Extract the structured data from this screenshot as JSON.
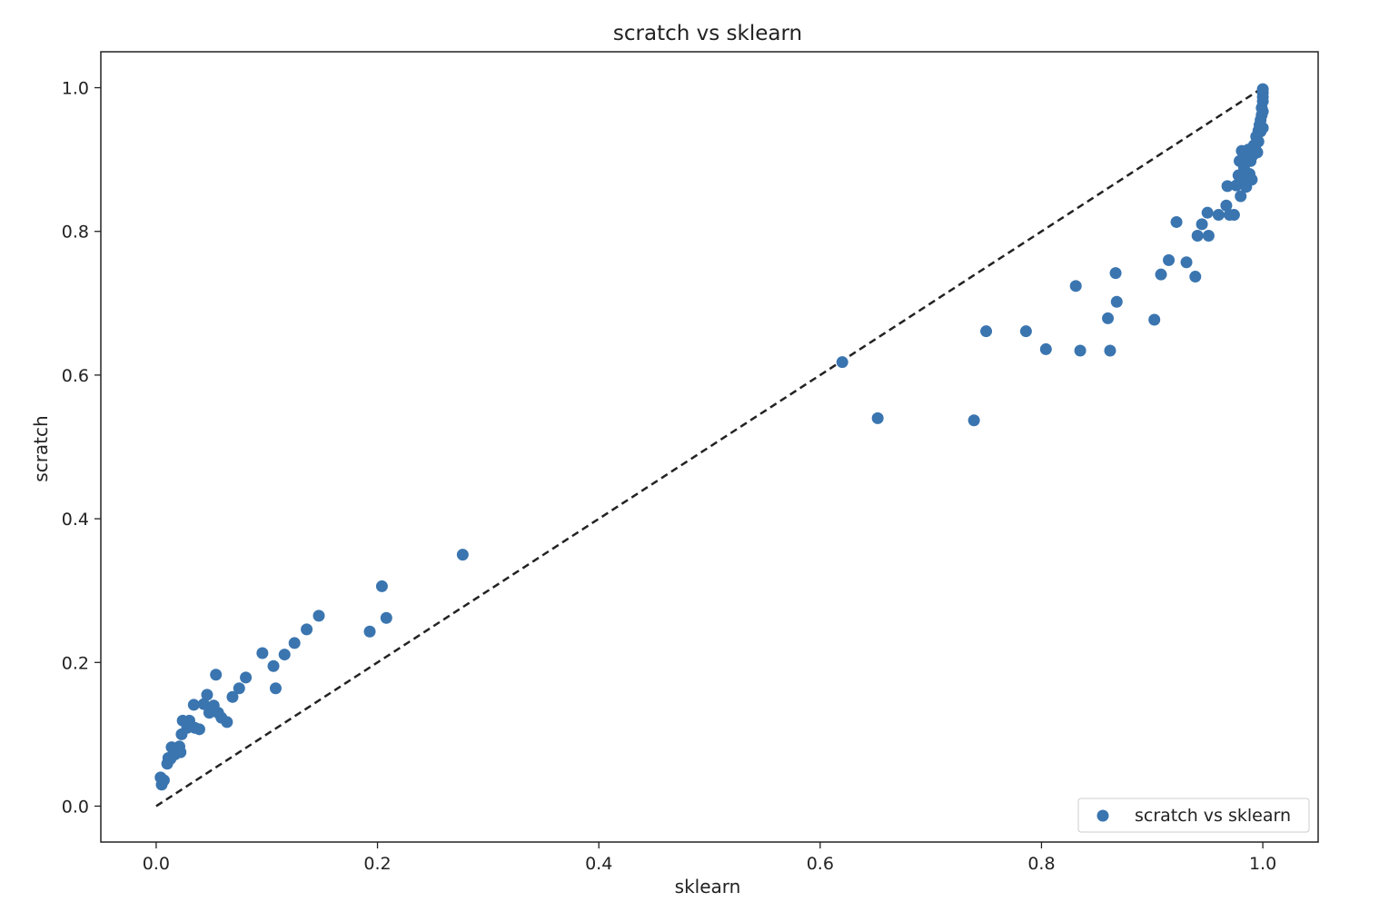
{
  "chart_data": {
    "type": "scatter",
    "title": "scratch vs sklearn",
    "xlabel": "sklearn",
    "ylabel": "scratch",
    "xlim": [
      -0.05,
      1.05
    ],
    "ylim": [
      -0.05,
      1.05
    ],
    "xticks": [
      {
        "value": 0.0,
        "label": "0.0"
      },
      {
        "value": 0.2,
        "label": "0.2"
      },
      {
        "value": 0.4,
        "label": "0.4"
      },
      {
        "value": 0.6,
        "label": "0.6"
      },
      {
        "value": 0.8,
        "label": "0.8"
      },
      {
        "value": 1.0,
        "label": "1.0"
      }
    ],
    "yticks": [
      {
        "value": 0.0,
        "label": "0.0"
      },
      {
        "value": 0.2,
        "label": "0.2"
      },
      {
        "value": 0.4,
        "label": "0.4"
      },
      {
        "value": 0.6,
        "label": "0.6"
      },
      {
        "value": 0.8,
        "label": "0.8"
      },
      {
        "value": 1.0,
        "label": "1.0"
      }
    ],
    "grid": false,
    "legend": {
      "position": "lower-right",
      "entries": [
        "scratch vs sklearn"
      ]
    },
    "reference_line": {
      "x": [
        0,
        1
      ],
      "y": [
        0,
        1
      ],
      "style": "dashed",
      "color": "#222222"
    },
    "series": [
      {
        "name": "scratch vs sklearn",
        "color": "#3a75b0",
        "points": [
          [
            0.004,
            0.04
          ],
          [
            0.005,
            0.03
          ],
          [
            0.007,
            0.036
          ],
          [
            0.01,
            0.059
          ],
          [
            0.011,
            0.067
          ],
          [
            0.013,
            0.066
          ],
          [
            0.014,
            0.082
          ],
          [
            0.017,
            0.072
          ],
          [
            0.018,
            0.077
          ],
          [
            0.021,
            0.083
          ],
          [
            0.022,
            0.075
          ],
          [
            0.023,
            0.1
          ],
          [
            0.024,
            0.119
          ],
          [
            0.028,
            0.109
          ],
          [
            0.03,
            0.119
          ],
          [
            0.034,
            0.141
          ],
          [
            0.035,
            0.109
          ],
          [
            0.039,
            0.107
          ],
          [
            0.043,
            0.142
          ],
          [
            0.046,
            0.155
          ],
          [
            0.048,
            0.13
          ],
          [
            0.052,
            0.14
          ],
          [
            0.054,
            0.183
          ],
          [
            0.056,
            0.13
          ],
          [
            0.059,
            0.123
          ],
          [
            0.064,
            0.117
          ],
          [
            0.069,
            0.152
          ],
          [
            0.075,
            0.164
          ],
          [
            0.081,
            0.179
          ],
          [
            0.096,
            0.213
          ],
          [
            0.106,
            0.195
          ],
          [
            0.108,
            0.164
          ],
          [
            0.116,
            0.211
          ],
          [
            0.125,
            0.227
          ],
          [
            0.136,
            0.246
          ],
          [
            0.147,
            0.265
          ],
          [
            0.193,
            0.243
          ],
          [
            0.204,
            0.306
          ],
          [
            0.208,
            0.262
          ],
          [
            0.277,
            0.35
          ],
          [
            0.62,
            0.618
          ],
          [
            0.652,
            0.54
          ],
          [
            0.739,
            0.537
          ],
          [
            0.75,
            0.661
          ],
          [
            0.786,
            0.661
          ],
          [
            0.804,
            0.636
          ],
          [
            0.831,
            0.724
          ],
          [
            0.835,
            0.634
          ],
          [
            0.86,
            0.679
          ],
          [
            0.862,
            0.634
          ],
          [
            0.867,
            0.742
          ],
          [
            0.868,
            0.702
          ],
          [
            0.902,
            0.677
          ],
          [
            0.908,
            0.74
          ],
          [
            0.915,
            0.76
          ],
          [
            0.922,
            0.813
          ],
          [
            0.931,
            0.757
          ],
          [
            0.939,
            0.737
          ],
          [
            0.941,
            0.794
          ],
          [
            0.945,
            0.81
          ],
          [
            0.95,
            0.826
          ],
          [
            0.951,
            0.794
          ],
          [
            0.96,
            0.823
          ],
          [
            0.967,
            0.836
          ],
          [
            0.968,
            0.863
          ],
          [
            0.97,
            0.823
          ],
          [
            0.974,
            0.823
          ],
          [
            0.976,
            0.864
          ],
          [
            0.978,
            0.878
          ],
          [
            0.979,
            0.898
          ],
          [
            0.98,
            0.849
          ],
          [
            0.981,
            0.912
          ],
          [
            0.983,
            0.889
          ],
          [
            0.984,
            0.869
          ],
          [
            0.985,
            0.862
          ],
          [
            0.986,
            0.902
          ],
          [
            0.987,
            0.914
          ],
          [
            0.988,
            0.88
          ],
          [
            0.989,
            0.898
          ],
          [
            0.99,
            0.872
          ],
          [
            0.991,
            0.906
          ],
          [
            0.992,
            0.92
          ],
          [
            0.993,
            0.918
          ],
          [
            0.994,
            0.932
          ],
          [
            0.995,
            0.91
          ],
          [
            0.996,
            0.925
          ],
          [
            0.996,
            0.94
          ],
          [
            0.997,
            0.948
          ],
          [
            0.998,
            0.955
          ],
          [
            0.998,
            0.939
          ],
          [
            0.999,
            0.962
          ],
          [
            0.999,
            0.972
          ],
          [
            1.0,
            0.981
          ],
          [
            1.0,
            0.987
          ],
          [
            1.0,
            0.993
          ],
          [
            1.0,
            0.998
          ],
          [
            1.0,
            0.967
          ],
          [
            1.0,
            0.944
          ]
        ]
      }
    ]
  }
}
